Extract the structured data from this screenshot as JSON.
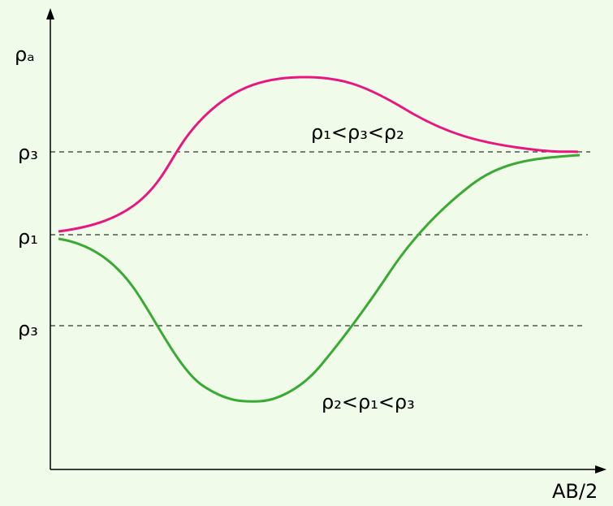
{
  "axes": {
    "y_label": "ρₐ",
    "x_label": "AB/2"
  },
  "levels": [
    "ρ₃",
    "ρ₁",
    "ρ₃"
  ],
  "curves": [
    {
      "label": "ρ₁<ρ₃<ρ₂"
    },
    {
      "label": "ρ₂<ρ₁<ρ₃"
    }
  ]
}
